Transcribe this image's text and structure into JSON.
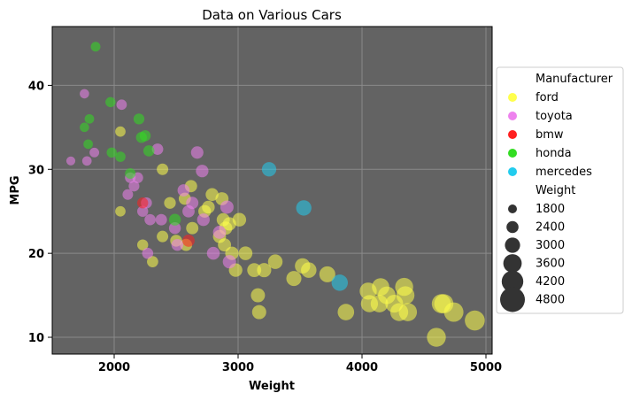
{
  "chart_data": {
    "type": "scatter",
    "title": "Data on Various Cars",
    "xlabel": "Weight",
    "ylabel": "MPG",
    "xlim": [
      1500,
      5050
    ],
    "ylim": [
      8,
      47
    ],
    "xticks": [
      2000,
      3000,
      4000,
      5000
    ],
    "yticks": [
      10,
      20,
      30,
      40
    ],
    "grid": true,
    "background": "#636363",
    "legend": {
      "placement": "right",
      "hue_title": "Manufacturer",
      "size_title": "Weight",
      "size_entries": [
        "1800",
        "2400",
        "3000",
        "3600",
        "4200",
        "4800"
      ]
    },
    "series": [
      {
        "name": "ford",
        "color": "#ffff4d",
        "points": [
          [
            2050,
            34.5
          ],
          [
            2050,
            25
          ],
          [
            2230,
            21
          ],
          [
            2310,
            19
          ],
          [
            2390,
            30
          ],
          [
            2390,
            22
          ],
          [
            2450,
            26
          ],
          [
            2500,
            21.5
          ],
          [
            2570,
            26.5
          ],
          [
            2580,
            21
          ],
          [
            2620,
            28
          ],
          [
            2630,
            23
          ],
          [
            2730,
            25
          ],
          [
            2760,
            25.5
          ],
          [
            2790,
            27
          ],
          [
            2850,
            22
          ],
          [
            2870,
            26.5
          ],
          [
            2880,
            24
          ],
          [
            2890,
            21
          ],
          [
            2900,
            23
          ],
          [
            2930,
            23.5
          ],
          [
            2950,
            20
          ],
          [
            2980,
            18
          ],
          [
            3010,
            24
          ],
          [
            3060,
            20
          ],
          [
            3130,
            18
          ],
          [
            3160,
            15
          ],
          [
            3170,
            13
          ],
          [
            3210,
            18
          ],
          [
            3300,
            19
          ],
          [
            3450,
            17
          ],
          [
            3520,
            18.5
          ],
          [
            3570,
            18
          ],
          [
            3720,
            17.5
          ],
          [
            3870,
            13
          ],
          [
            4050,
            15.5
          ],
          [
            4060,
            14
          ],
          [
            4140,
            14
          ],
          [
            4150,
            16
          ],
          [
            4200,
            15
          ],
          [
            4260,
            14
          ],
          [
            4300,
            13
          ],
          [
            4340,
            16
          ],
          [
            4350,
            15
          ],
          [
            4370,
            13
          ],
          [
            4600,
            10
          ],
          [
            4640,
            14
          ],
          [
            4660,
            14
          ],
          [
            4740,
            13
          ],
          [
            4910,
            12
          ]
        ]
      },
      {
        "name": "toyota",
        "color": "#ee82ee",
        "points": [
          [
            1650,
            31
          ],
          [
            1760,
            39
          ],
          [
            1780,
            31
          ],
          [
            1840,
            32
          ],
          [
            2060,
            37.7
          ],
          [
            2110,
            27
          ],
          [
            2130,
            29
          ],
          [
            2160,
            28
          ],
          [
            2190,
            29
          ],
          [
            2230,
            25
          ],
          [
            2260,
            26
          ],
          [
            2270,
            20
          ],
          [
            2290,
            24
          ],
          [
            2350,
            32.4
          ],
          [
            2380,
            24
          ],
          [
            2490,
            23
          ],
          [
            2510,
            21
          ],
          [
            2560,
            27.5
          ],
          [
            2600,
            25
          ],
          [
            2630,
            26
          ],
          [
            2670,
            32
          ],
          [
            2710,
            29.8
          ],
          [
            2720,
            24
          ],
          [
            2800,
            20
          ],
          [
            2850,
            22.5
          ],
          [
            2910,
            25.5
          ],
          [
            2930,
            19
          ]
        ]
      },
      {
        "name": "bmw",
        "color": "#ff2020",
        "points": [
          [
            2230,
            26
          ],
          [
            2600,
            21.5
          ]
        ]
      },
      {
        "name": "honda",
        "color": "#33dd22",
        "points": [
          [
            1760,
            35
          ],
          [
            1790,
            33
          ],
          [
            1800,
            36
          ],
          [
            1850,
            44.6
          ],
          [
            1970,
            38
          ],
          [
            1980,
            32
          ],
          [
            2050,
            31.5
          ],
          [
            2130,
            29.5
          ],
          [
            2200,
            36
          ],
          [
            2220,
            33.8
          ],
          [
            2250,
            34
          ],
          [
            2280,
            32.2
          ],
          [
            2490,
            24
          ]
        ]
      },
      {
        "name": "mercedes",
        "color": "#22ccee",
        "points": [
          [
            3250,
            30
          ],
          [
            3530,
            25.4
          ],
          [
            3820,
            16.5
          ]
        ]
      }
    ]
  }
}
